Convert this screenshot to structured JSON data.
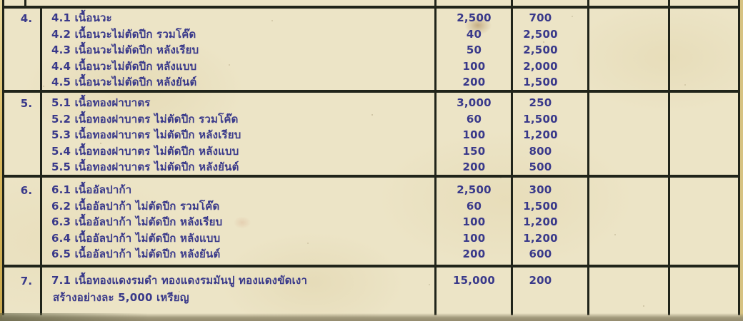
{
  "colors": {
    "paper": "#ece4c6",
    "ink": "#39398a",
    "border": "#20241a",
    "edge_right": "#d6c282",
    "bottom_band": "#938a6d"
  },
  "table": {
    "sections": [
      {
        "no": "4.",
        "rows": [
          {
            "label": "4.1 เนื้อนวะ",
            "col1": "2,500",
            "col2": "700"
          },
          {
            "label": "4.2 เนื้อนวะไม่ตัดปีก รวมโค๊ด",
            "col1": "40",
            "col2": "2,500"
          },
          {
            "label": "4.3 เนื้อนวะไม่ตัดปีก หลังเรียบ",
            "col1": "50",
            "col2": "2,500"
          },
          {
            "label": "4.4 เนื้อนวะไม่ตัดปีก หลังแบบ",
            "col1": "100",
            "col2": "2,000"
          },
          {
            "label": "4.5 เนื้อนวะไม่ตัดปีก หลังยันต์",
            "col1": "200",
            "col2": "1,500"
          }
        ]
      },
      {
        "no": "5.",
        "rows": [
          {
            "label": "5.1 เนื้อทองฝาบาตร",
            "col1": "3,000",
            "col2": "250"
          },
          {
            "label": "5.2 เนื้อทองฝาบาตร ไม่ตัดปีก รวมโค๊ด",
            "col1": "60",
            "col2": "1,500"
          },
          {
            "label": "5.3 เนื้อทองฝาบาตร ไม่ตัดปีก หลังเรียบ",
            "col1": "100",
            "col2": "1,200"
          },
          {
            "label": "5.4 เนื้อทองฝาบาตร ไม่ตัดปีก หลังแบบ",
            "col1": "150",
            "col2": "800"
          },
          {
            "label": "5.5 เนื้อทองฝาบาตร ไม่ตัดปีก หลังยันต์",
            "col1": "200",
            "col2": "500"
          }
        ]
      },
      {
        "no": "6.",
        "rows": [
          {
            "label": "6.1 เนื้ออัลปาก้า",
            "col1": "2,500",
            "col2": "300"
          },
          {
            "label": "6.2 เนื้ออัลปาก้า ไม่ตัดปีก รวมโค๊ด",
            "col1": "60",
            "col2": "1,500"
          },
          {
            "label": "6.3 เนื้ออัลปาก้า ไม่ตัดปีก หลังเรียบ",
            "col1": "100",
            "col2": "1,200"
          },
          {
            "label": "6.4 เนื้ออัลปาก้า ไม่ตัดปีก หลังแบบ",
            "col1": "100",
            "col2": "1,200"
          },
          {
            "label": "6.5 เนื้ออัลปาก้า ไม่ตัดปีก หลังยันต์",
            "col1": "200",
            "col2": "600"
          }
        ]
      },
      {
        "no": "7.",
        "rows": [
          {
            "label": "7.1 เนื้อทองแดงรมดำ ทองแดงรมมันปู ทองแดงขัดเงา",
            "label2": "สร้างอย่างละ 5,000 เหรียญ",
            "col1": "15,000",
            "col2": "200"
          }
        ]
      }
    ]
  }
}
